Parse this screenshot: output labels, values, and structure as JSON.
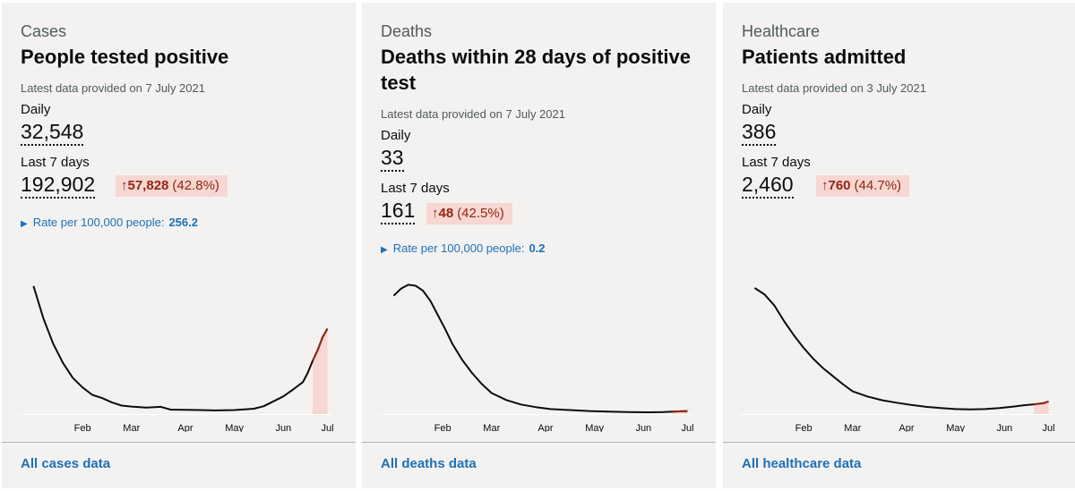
{
  "colors": {
    "line": "#0b0c0c",
    "highlight_line": "#942514",
    "highlight_fill": "#f6d7d2",
    "link": "#1d70b8",
    "panel": "#f3f2f1"
  },
  "icons": {
    "arrow_up": "↑",
    "expand_triangle": "▶"
  },
  "cards": [
    {
      "category": "Cases",
      "title": "People tested positive",
      "latest": "Latest data provided on 7 July 2021",
      "daily_label": "Daily",
      "daily_value": "32,548",
      "week_label": "Last 7 days",
      "week_value": "192,902",
      "change_value": "57,828",
      "change_pct": "(42.8%)",
      "rate_label": "Rate per 100,000 people:",
      "rate_value": "256.2",
      "link": "All cases data"
    },
    {
      "category": "Deaths",
      "title": "Deaths within 28 days of positive test",
      "latest": "Latest data provided on 7 July 2021",
      "daily_label": "Daily",
      "daily_value": "33",
      "week_label": "Last 7 days",
      "week_value": "161",
      "change_value": "48",
      "change_pct": "(42.5%)",
      "rate_label": "Rate per 100,000 people:",
      "rate_value": "0.2",
      "link": "All deaths data"
    },
    {
      "category": "Healthcare",
      "title": "Patients admitted",
      "latest": "Latest data provided on 3 July 2021",
      "daily_label": "Daily",
      "daily_value": "386",
      "week_label": "Last 7 days",
      "week_value": "2,460",
      "change_value": "760",
      "change_pct": "(44.7%)",
      "link": "All healthcare data"
    }
  ],
  "chart_data": [
    {
      "type": "line",
      "months": [
        "Feb",
        "Mar",
        "Apr",
        "May",
        "Jun",
        "Jul"
      ],
      "x_month_positions": [
        1.3,
        2.3,
        3.4,
        4.4,
        5.4,
        6.3
      ],
      "x": [
        0.3,
        0.5,
        0.7,
        0.9,
        1.1,
        1.3,
        1.5,
        1.7,
        1.9,
        2.1,
        2.3,
        2.6,
        2.9,
        3.1,
        3.4,
        3.7,
        4.0,
        4.4,
        4.8,
        5.0,
        5.2,
        5.4,
        5.6,
        5.8,
        5.9,
        6.0,
        6.1,
        6.2,
        6.3
      ],
      "y": [
        60000,
        45000,
        33000,
        24000,
        17000,
        12500,
        9000,
        7500,
        5500,
        4000,
        3500,
        3000,
        3400,
        2100,
        2000,
        1900,
        1700,
        1900,
        2500,
        3700,
        6000,
        8300,
        11500,
        15000,
        19500,
        25000,
        30000,
        36000,
        40000
      ],
      "highlight_from": 6.0,
      "ylim": [
        0,
        62000
      ]
    },
    {
      "type": "line",
      "months": [
        "Feb",
        "Mar",
        "Apr",
        "May",
        "Jun",
        "Jul"
      ],
      "x_month_positions": [
        1.3,
        2.3,
        3.4,
        4.4,
        5.4,
        6.3
      ],
      "x": [
        0.3,
        0.45,
        0.6,
        0.75,
        0.9,
        1.05,
        1.2,
        1.35,
        1.5,
        1.7,
        1.9,
        2.1,
        2.3,
        2.6,
        2.9,
        3.2,
        3.5,
        3.9,
        4.3,
        4.7,
        5.1,
        5.5,
        5.8,
        6.0,
        6.3
      ],
      "y": [
        1180,
        1250,
        1290,
        1280,
        1230,
        1130,
        990,
        850,
        700,
        540,
        410,
        300,
        210,
        140,
        95,
        70,
        50,
        40,
        30,
        25,
        20,
        18,
        20,
        24,
        30
      ],
      "highlight_from": 6.0,
      "ylim": [
        0,
        1320
      ]
    },
    {
      "type": "line",
      "months": [
        "Feb",
        "Mar",
        "Apr",
        "May",
        "Jun",
        "Jul"
      ],
      "x_month_positions": [
        1.3,
        2.3,
        3.4,
        4.4,
        5.4,
        6.3
      ],
      "x": [
        0.3,
        0.5,
        0.7,
        0.9,
        1.1,
        1.3,
        1.5,
        1.7,
        1.9,
        2.1,
        2.3,
        2.6,
        2.9,
        3.2,
        3.5,
        3.8,
        4.1,
        4.4,
        4.7,
        5.0,
        5.3,
        5.6,
        5.8,
        6.0,
        6.2,
        6.3
      ],
      "y": [
        4000,
        3800,
        3450,
        2950,
        2500,
        2100,
        1750,
        1450,
        1200,
        950,
        720,
        560,
        440,
        360,
        290,
        230,
        190,
        160,
        150,
        160,
        190,
        240,
        280,
        310,
        350,
        400
      ],
      "highlight_from": 6.0,
      "ylim": [
        0,
        4200
      ]
    }
  ]
}
